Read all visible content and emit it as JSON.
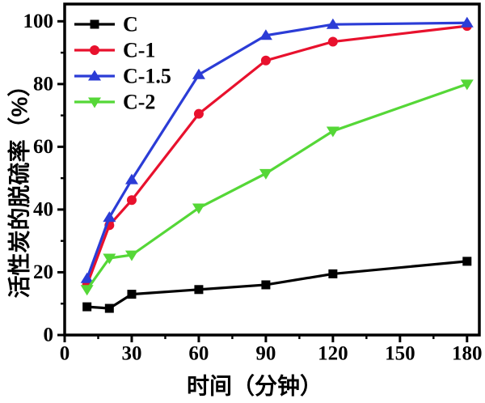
{
  "figure": {
    "background": "#ffffff",
    "axis_color": "#000000"
  },
  "chart_data": {
    "type": "line",
    "title": "",
    "xlabel": "时间（分钟）",
    "ylabel": "活性炭的脱硫率（%）",
    "x": [
      10,
      20,
      30,
      60,
      90,
      120,
      180
    ],
    "series": [
      {
        "name": "C",
        "color": "#000000",
        "marker": "square",
        "values": [
          9,
          8.5,
          13,
          14.5,
          16,
          19.5,
          23.5
        ]
      },
      {
        "name": "C-1",
        "color": "#e8112d",
        "marker": "circle",
        "values": [
          16,
          35,
          43,
          70.5,
          87.5,
          93.5,
          98.5
        ]
      },
      {
        "name": "C-1.5",
        "color": "#2b3cd6",
        "marker": "triangle-up",
        "values": [
          18,
          37.5,
          49.5,
          83,
          95.5,
          99,
          99.5
        ]
      },
      {
        "name": "C-2",
        "color": "#55d737",
        "marker": "triangle-down",
        "values": [
          14.5,
          24.5,
          25.5,
          40.5,
          51.5,
          65,
          80
        ]
      }
    ],
    "xticks": [
      0,
      30,
      60,
      90,
      120,
      150,
      180
    ],
    "xticks_minor": [
      15,
      45,
      75,
      105,
      135,
      165
    ],
    "yticks": [
      0,
      20,
      40,
      60,
      80,
      100
    ],
    "yticks_minor": [
      10,
      30,
      50,
      70,
      90
    ],
    "xlim": [
      0,
      185.5
    ],
    "ylim": [
      0,
      105.5
    ],
    "grid": false,
    "legend_position": "top-left"
  }
}
